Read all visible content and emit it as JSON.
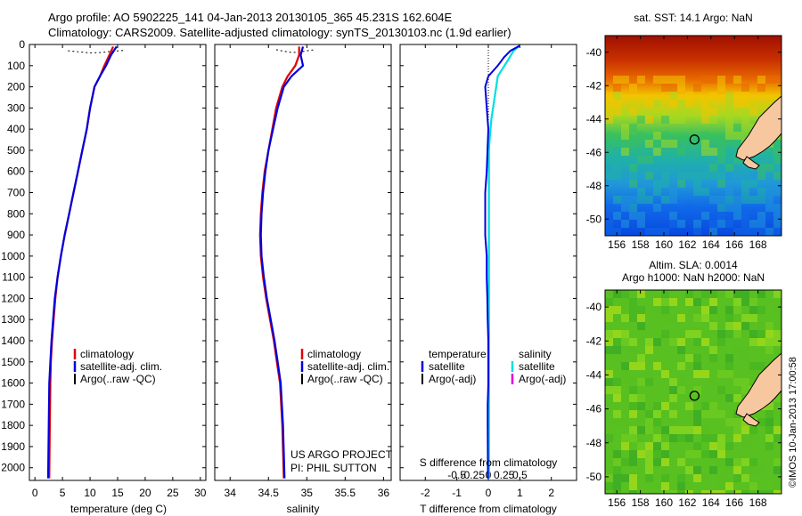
{
  "header": {
    "line1": "Argo profile: AO 5902225_141 04-Jan-2013 20130105_365 45.231S 162.604E",
    "line2": "Climatology: CARS2009. Satellite-adjusted climatology: synTS_20130103.nc (1.9d earlier)"
  },
  "colors": {
    "climatology": "#e00000",
    "satellite": "#0000e0",
    "argo": "#000000",
    "sal_satellite": "#00e0e0",
    "sal_argo": "#e000e0"
  },
  "yaxis": {
    "ticks": [
      "0",
      "100",
      "200",
      "300",
      "400",
      "500",
      "600",
      "700",
      "800",
      "900",
      "1000",
      "1100",
      "1200",
      "1300",
      "1400",
      "1500",
      "1600",
      "1700",
      "1800",
      "1900",
      "2000"
    ]
  },
  "chart_data": [
    {
      "type": "line",
      "panel": "temperature",
      "xlabel": "temperature (deg C)",
      "xlim": [
        -1,
        31
      ],
      "ylim": [
        2060,
        0
      ],
      "xticks": [
        "0",
        "5",
        "10",
        "15",
        "20",
        "25",
        "30"
      ],
      "legend": [
        "climatology",
        "satellite-adj. clim.",
        "Argo(..raw -QC)"
      ],
      "series": [
        {
          "name": "climatology",
          "x": [
            14.2,
            13.5,
            12.6,
            11.8,
            10.8,
            10.0,
            9.4,
            8.6,
            7.8,
            7.0,
            6.2,
            5.4,
            4.7,
            4.1,
            3.7,
            3.4,
            3.1,
            2.9,
            2.8,
            2.7,
            2.6
          ],
          "y": [
            10,
            50,
            100,
            150,
            200,
            300,
            400,
            500,
            600,
            700,
            800,
            900,
            1000,
            1100,
            1200,
            1300,
            1400,
            1500,
            1600,
            1800,
            2050
          ]
        },
        {
          "name": "satellite-adj. clim.",
          "x": [
            14.8,
            13.8,
            12.9,
            11.8,
            10.8,
            10.0,
            9.4,
            8.6,
            7.8,
            7.0,
            6.2,
            5.4,
            4.7,
            4.1,
            3.6,
            3.3,
            3.0,
            2.8,
            2.6,
            2.5,
            2.4
          ],
          "y": [
            10,
            50,
            100,
            150,
            200,
            300,
            400,
            500,
            600,
            700,
            800,
            900,
            1000,
            1100,
            1200,
            1300,
            1400,
            1500,
            1600,
            1800,
            2050
          ]
        },
        {
          "name": "Argo(..raw -QC)",
          "x": [
            6,
            8,
            10,
            12,
            14,
            16
          ],
          "y": [
            30,
            35,
            40,
            38,
            32,
            28
          ]
        }
      ]
    },
    {
      "type": "line",
      "panel": "salinity",
      "xlabel": "salinity",
      "xlim": [
        33.8,
        36.1
      ],
      "ylim": [
        2060,
        0
      ],
      "xticks": [
        "34",
        "34.5",
        "35",
        "35.5",
        "36"
      ],
      "legend": [
        "climatology",
        "satellite-adj. clim.",
        "Argo(..raw -QC)"
      ],
      "annotations": [
        "US ARGO PROJECT",
        "PI: PHIL SUTTON"
      ],
      "series": [
        {
          "name": "climatology",
          "x": [
            34.9,
            34.9,
            34.85,
            34.75,
            34.68,
            34.6,
            34.55,
            34.5,
            34.45,
            34.42,
            34.4,
            34.39,
            34.4,
            34.43,
            34.47,
            34.52,
            34.57,
            34.61,
            34.65,
            34.68,
            34.7
          ],
          "y": [
            10,
            50,
            100,
            150,
            200,
            300,
            400,
            500,
            600,
            700,
            800,
            900,
            1000,
            1100,
            1200,
            1300,
            1400,
            1500,
            1600,
            1800,
            2050
          ]
        },
        {
          "name": "satellite-adj. clim.",
          "x": [
            34.95,
            34.92,
            34.95,
            34.8,
            34.7,
            34.62,
            34.56,
            34.5,
            34.46,
            34.43,
            34.41,
            34.4,
            34.41,
            34.44,
            34.48,
            34.53,
            34.58,
            34.62,
            34.66,
            34.69,
            34.71
          ],
          "y": [
            10,
            50,
            100,
            150,
            200,
            300,
            400,
            500,
            600,
            700,
            800,
            900,
            1000,
            1100,
            1200,
            1300,
            1400,
            1500,
            1600,
            1800,
            2050
          ]
        },
        {
          "name": "Argo(..raw -QC)",
          "x": [
            34.6,
            34.7,
            34.8,
            34.9,
            35.0,
            35.1
          ],
          "y": [
            25,
            32,
            38,
            36,
            30,
            25
          ]
        }
      ]
    },
    {
      "type": "line",
      "panel": "difference",
      "xlabel": "T difference from climatology",
      "xlabel_top": "S difference from climatology",
      "xlim": [
        -2.8,
        2.8
      ],
      "ylim": [
        2060,
        0
      ],
      "xticks": [
        "-2",
        "-1",
        "0",
        "1",
        "2"
      ],
      "xticks_top": [
        "-0.5",
        "-0.25",
        "0",
        "0.25",
        "0.5"
      ],
      "legend_t": {
        "title": "temperature",
        "items": [
          "satellite",
          "Argo(-adj)"
        ]
      },
      "legend_s": {
        "title": "salinity",
        "items": [
          "satellite",
          "Argo(-adj)"
        ]
      },
      "series": [
        {
          "name": "temperature satellite",
          "x": [
            1.0,
            0.7,
            0.5,
            0.3,
            0.0,
            -0.1,
            0.0,
            -0.05,
            -0.1,
            -0.1,
            -0.1,
            -0.05,
            -0.05,
            -0.03,
            -0.02,
            0.0,
            0.0,
            0.0,
            -0.02,
            -0.02,
            -0.01
          ],
          "y": [
            5,
            30,
            60,
            100,
            150,
            200,
            400,
            600,
            700,
            800,
            900,
            1000,
            1100,
            1200,
            1300,
            1400,
            1500,
            1600,
            1700,
            1800,
            2050
          ]
        },
        {
          "name": "salinity satellite",
          "x": [
            0.5,
            0.4,
            0.3,
            0.15,
            0.1,
            0.05,
            0.02,
            0.01,
            0.01,
            0.01,
            0.01,
            0.01,
            0.01,
            0.01,
            0.01
          ],
          "y": [
            5,
            30,
            80,
            150,
            250,
            350,
            450,
            500,
            600,
            800,
            1000,
            1200,
            1500,
            1800,
            2050
          ]
        }
      ]
    },
    {
      "type": "heatmap",
      "panel": "sst-map",
      "title": "sat. SST: 14.1  Argo: NaN",
      "xlim": [
        155,
        170
      ],
      "ylim": [
        -51,
        -39
      ],
      "xticks": [
        "156",
        "158",
        "160",
        "162",
        "164",
        "166",
        "168"
      ],
      "yticks": [
        "-40",
        "-42",
        "-44",
        "-46",
        "-48",
        "-50"
      ],
      "marker": {
        "lon": 162.604,
        "lat": -45.231
      }
    },
    {
      "type": "heatmap",
      "panel": "sla-map",
      "title1": "Altim. SLA: 0.0014",
      "title2": "Argo h1000: NaN h2000: NaN",
      "xlim": [
        155,
        170
      ],
      "ylim": [
        -51,
        -39
      ],
      "xticks": [
        "156",
        "158",
        "160",
        "162",
        "164",
        "166",
        "168"
      ],
      "yticks": [
        "-40",
        "-42",
        "-44",
        "-46",
        "-48",
        "-50"
      ],
      "marker": {
        "lon": 162.604,
        "lat": -45.231
      }
    }
  ],
  "side_label": "©IMOS 10-Jan-2013 17:00:58"
}
